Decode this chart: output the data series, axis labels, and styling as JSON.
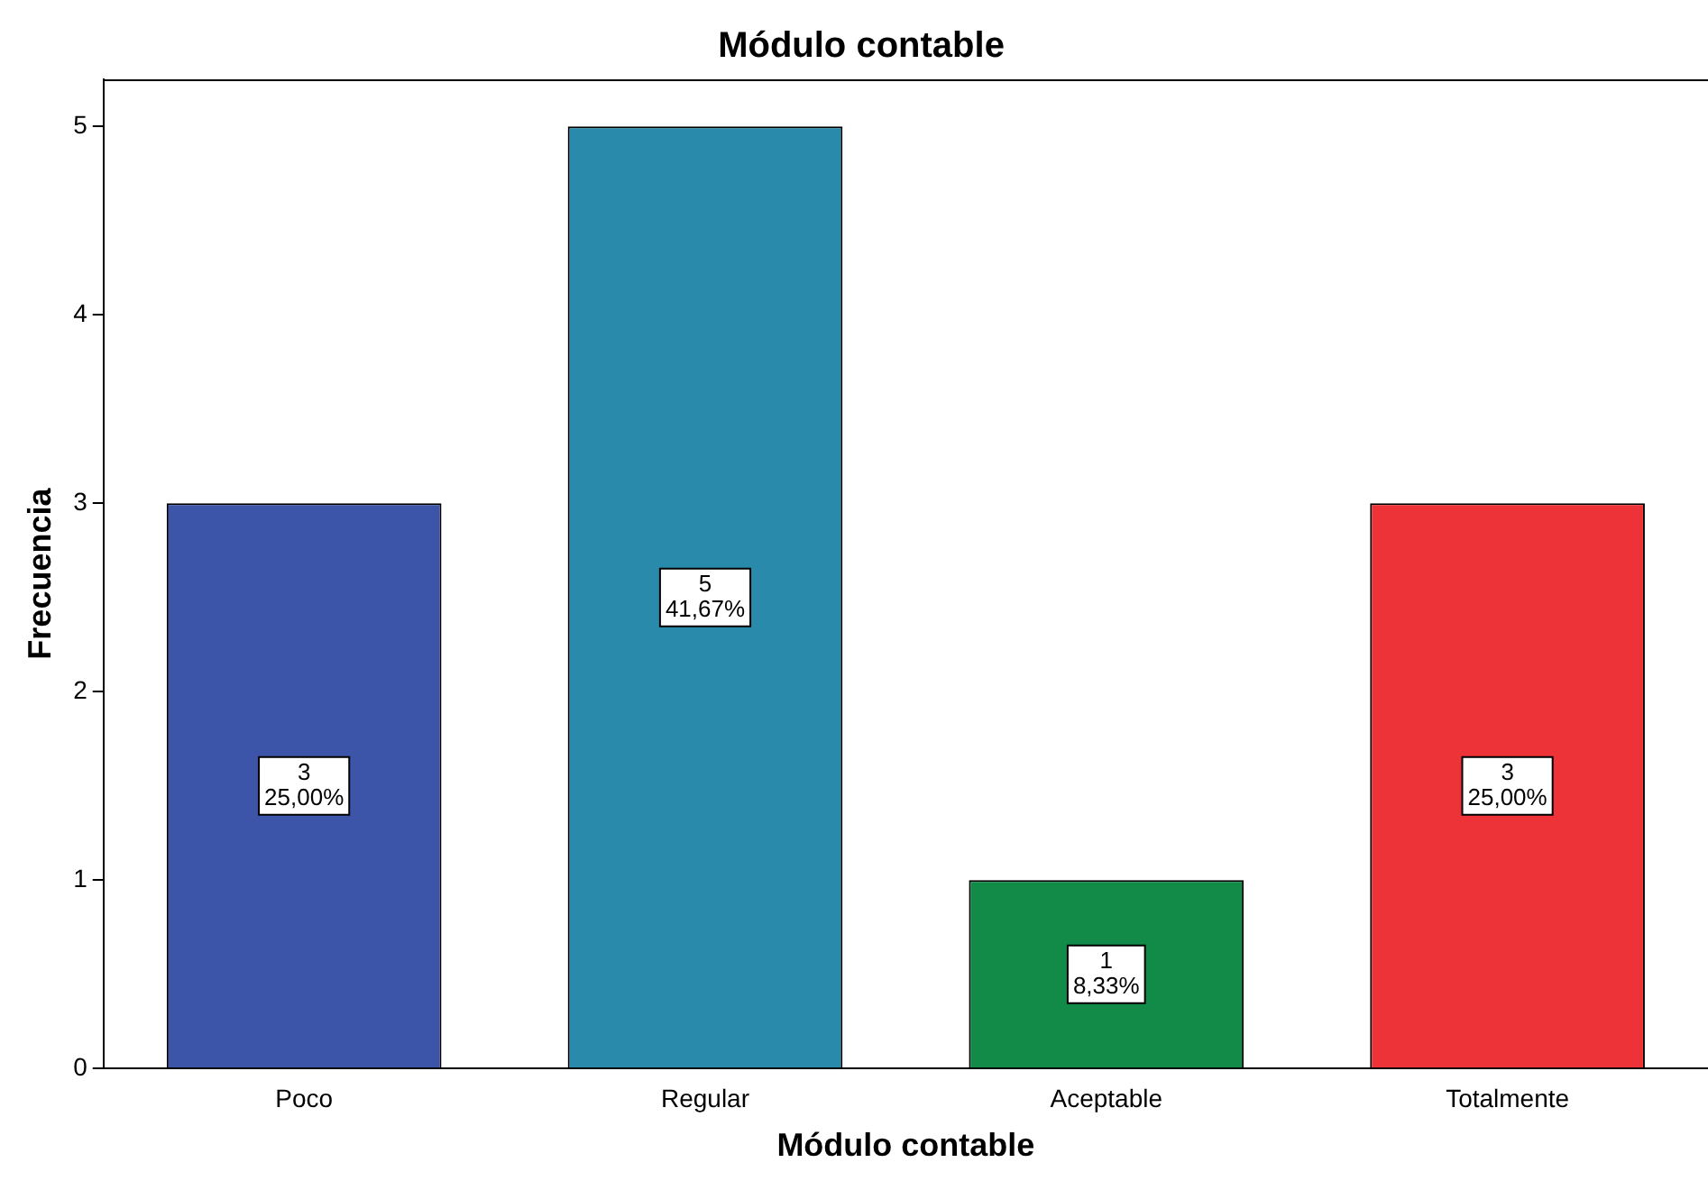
{
  "chart_data": {
    "type": "bar",
    "title": "Módulo contable",
    "xlabel": "Módulo contable",
    "ylabel": "Frecuencia",
    "categories": [
      "Poco",
      "Regular",
      "Aceptable",
      "Totalmente"
    ],
    "values": [
      3,
      5,
      1,
      3
    ],
    "colors": [
      "#3d55a8",
      "#2a8aab",
      "#128a48",
      "#ee3338"
    ],
    "value_labels": [
      "3\n25,00%",
      "5\n41,67%",
      "1\n8,33%",
      "3\n25,00%"
    ],
    "ylim": [
      0,
      5.25
    ],
    "yticks": [
      0,
      1,
      2,
      3,
      4,
      5
    ],
    "grid": false,
    "legend": false
  }
}
